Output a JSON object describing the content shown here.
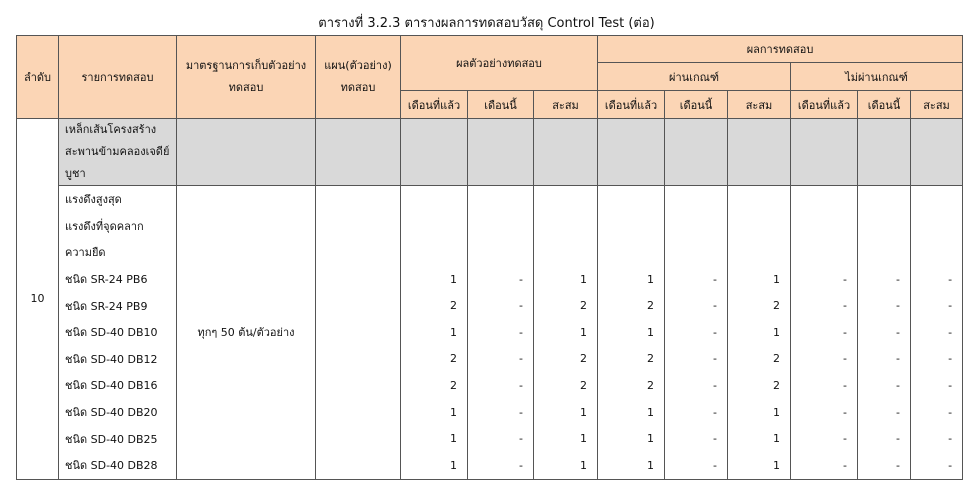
{
  "title": "ตารางที่ 3.2.3 ตารางผลการทดสอบวัสดุ Control Test (ต่อ)",
  "header": {
    "no": "ลำดับ",
    "item": "รายการทดสอบ",
    "standard": [
      "มาตรฐานการเก็บตัวอย่าง",
      "ทดสอบ"
    ],
    "plan": [
      "แผน(ตัวอย่าง)",
      "ทดสอบ"
    ],
    "sample_results": "ผลตัวอย่างทดสอบ",
    "test_results": "ผลการทดสอบ",
    "pass": "ผ่านเกณฑ์",
    "fail": "ไม่ผ่านเกณฑ์",
    "sub_columns": [
      "เดือนที่แล้ว",
      "เดือนนี้",
      "สะสม",
      "เดือนที่แล้ว",
      "เดือนนี้",
      "สะสม",
      "เดือนที่แล้ว",
      "เดือนนี้",
      "สะสม"
    ]
  },
  "body": {
    "no": "10",
    "group_label": [
      "เหล็กเส้นโครงสร้าง",
      "สะพานข้ามคลองเจดีย์",
      "บูชา"
    ],
    "standard": "ทุกๆ 50 ต้น/ตัวอย่าง",
    "rows": [
      {
        "item": "แรงดึงสูงสุด"
      },
      {
        "item": "แรงดึงที่จุดคลาก"
      },
      {
        "item": "ความยืด"
      },
      {
        "item": "ชนิด SR-24 PB6",
        "cells": [
          1,
          "-",
          1,
          1,
          "-",
          1,
          "-",
          "-",
          "-"
        ]
      },
      {
        "item": "ชนิด SR-24 PB9",
        "cells": [
          2,
          "-",
          2,
          2,
          "-",
          2,
          "-",
          "-",
          "-"
        ]
      },
      {
        "item": "ชนิด SD-40 DB10",
        "cells": [
          1,
          "-",
          1,
          1,
          "-",
          1,
          "-",
          "-",
          "-"
        ]
      },
      {
        "item": "ชนิด SD-40 DB12",
        "cells": [
          2,
          "-",
          2,
          2,
          "-",
          2,
          "-",
          "-",
          "-"
        ]
      },
      {
        "item": "ชนิด SD-40 DB16",
        "cells": [
          2,
          "-",
          2,
          2,
          "-",
          2,
          "-",
          "-",
          "-"
        ]
      },
      {
        "item": "ชนิด SD-40 DB20",
        "cells": [
          1,
          "-",
          1,
          1,
          "-",
          1,
          "-",
          "-",
          "-"
        ]
      },
      {
        "item": "ชนิด SD-40 DB25",
        "cells": [
          1,
          "-",
          1,
          1,
          "-",
          1,
          "-",
          "-",
          "-"
        ]
      },
      {
        "item": "ชนิด SD-40 DB28",
        "cells": [
          1,
          "-",
          1,
          1,
          "-",
          1,
          "-",
          "-",
          "-"
        ]
      }
    ]
  }
}
